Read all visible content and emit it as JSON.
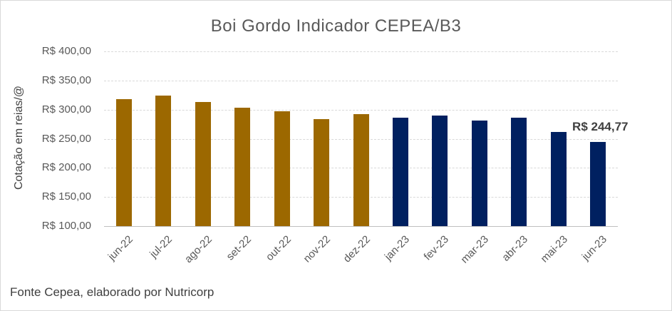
{
  "chart_data": {
    "type": "bar",
    "title": "Boi Gordo Indicador CEPEA/B3",
    "ylabel": "Cotação em reias/@",
    "xlabel": "",
    "ylim": [
      100,
      400
    ],
    "ytick_step": 50,
    "ytick_labels": [
      "R$ 100,00",
      "R$ 150,00",
      "R$ 200,00",
      "R$ 250,00",
      "R$ 300,00",
      "R$ 350,00",
      "R$ 400,00"
    ],
    "categories": [
      "jun-22",
      "jul-22",
      "ago-22",
      "set-22",
      "out-22",
      "nov-22",
      "dez-22",
      "jan-23",
      "fev-23",
      "mar-23",
      "abr-23",
      "mai-23",
      "jun-23"
    ],
    "values": [
      318,
      324,
      313,
      303,
      297,
      284,
      292,
      286,
      290,
      281,
      286,
      262,
      244.77
    ],
    "bar_colors": [
      "#9c6800",
      "#9c6800",
      "#9c6800",
      "#9c6800",
      "#9c6800",
      "#9c6800",
      "#9c6800",
      "#002060",
      "#002060",
      "#002060",
      "#002060",
      "#002060",
      "#002060"
    ],
    "palette": {
      "gold_2022": "#9c6800",
      "navy_2023": "#002060",
      "grid": "#d9d9d9",
      "text_gray": "#595959",
      "text_dark": "#404040"
    },
    "grid": true,
    "legend": false,
    "annotation": {
      "text": "R$ 244,77",
      "category": "jun-23"
    }
  },
  "footer": {
    "source": "Fonte Cepea, elaborado por Nutricorp"
  }
}
